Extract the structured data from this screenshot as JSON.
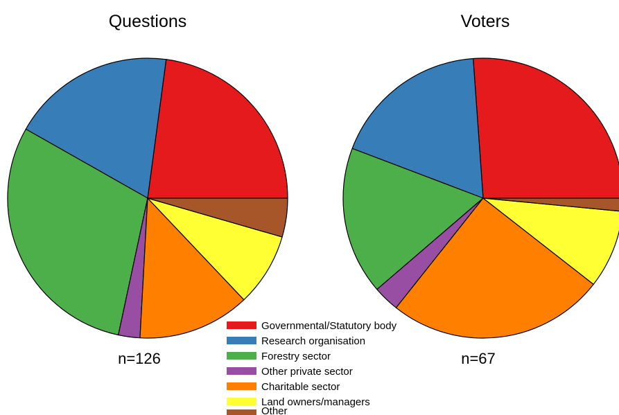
{
  "chart_data": [
    {
      "type": "pie",
      "title": "Questions",
      "annotation": "n=126",
      "slices": [
        {
          "label": "Governmental/Statutory body",
          "value": 23,
          "color": "#e41a1c"
        },
        {
          "label": "Research organisation",
          "value": 19,
          "color": "#377eb8"
        },
        {
          "label": "Forestry sector",
          "value": 30,
          "color": "#4daf4a"
        },
        {
          "label": "Other private sector",
          "value": 2.5,
          "color": "#984ea3"
        },
        {
          "label": "Charitable sector",
          "value": 13,
          "color": "#ff7f00"
        },
        {
          "label": "Land owners/managers",
          "value": 8.5,
          "color": "#ffff33"
        },
        {
          "label": "Other",
          "value": 4.5,
          "color": "#a65628"
        }
      ]
    },
    {
      "type": "pie",
      "title": "Voters",
      "annotation": "n=67",
      "slices": [
        {
          "label": "Governmental/Statutory body",
          "value": 26,
          "color": "#e41a1c"
        },
        {
          "label": "Research organisation",
          "value": 18,
          "color": "#377eb8"
        },
        {
          "label": "Forestry sector",
          "value": 17,
          "color": "#4daf4a"
        },
        {
          "label": "Other private sector",
          "value": 3,
          "color": "#984ea3"
        },
        {
          "label": "Charitable sector",
          "value": 25,
          "color": "#ff7f00"
        },
        {
          "label": "Land owners/managers",
          "value": 9,
          "color": "#ffff33"
        },
        {
          "label": "Other",
          "value": 1.5,
          "color": "#a65628"
        }
      ]
    }
  ],
  "legend": {
    "placement": "bottom-center",
    "items": [
      {
        "label": "Governmental/Statutory body",
        "color": "#e41a1c"
      },
      {
        "label": "Research organisation",
        "color": "#377eb8"
      },
      {
        "label": "Forestry sector",
        "color": "#4daf4a"
      },
      {
        "label": "Other private sector",
        "color": "#984ea3"
      },
      {
        "label": "Charitable sector",
        "color": "#ff7f00"
      },
      {
        "label": "Land owners/managers",
        "color": "#ffff33"
      },
      {
        "label": "Other",
        "color": "#a65628"
      }
    ]
  }
}
